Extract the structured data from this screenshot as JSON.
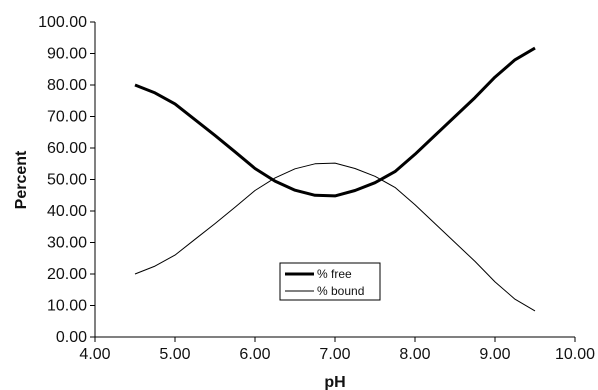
{
  "chart_data": {
    "type": "line",
    "xlabel": "pH",
    "ylabel": "Percent",
    "xlim": [
      4.0,
      10.0
    ],
    "ylim": [
      0.0,
      100.0
    ],
    "x_ticks": [
      "4.00",
      "5.00",
      "6.00",
      "7.00",
      "8.00",
      "9.00",
      "10.00"
    ],
    "y_ticks": [
      "0.00",
      "10.00",
      "20.00",
      "30.00",
      "40.00",
      "50.00",
      "60.00",
      "70.00",
      "80.00",
      "90.00",
      "100.00"
    ],
    "grid": false,
    "legend_position": "bottom-center",
    "series": [
      {
        "name": "% free",
        "color": "#000000",
        "style": "thick",
        "x": [
          4.5,
          4.75,
          5.0,
          5.25,
          5.5,
          5.75,
          6.0,
          6.25,
          6.5,
          6.75,
          7.0,
          7.25,
          7.5,
          7.75,
          8.0,
          8.25,
          8.5,
          8.75,
          9.0,
          9.25,
          9.5
        ],
        "y": [
          80.0,
          77.5,
          74.0,
          69.0,
          64.0,
          58.8,
          53.5,
          49.5,
          46.6,
          45.0,
          44.8,
          46.5,
          49.0,
          52.5,
          58.0,
          64.0,
          70.0,
          76.0,
          82.5,
          88.0,
          91.7
        ]
      },
      {
        "name": "% bound",
        "color": "#000000",
        "style": "thin",
        "x": [
          4.5,
          4.75,
          5.0,
          5.25,
          5.5,
          5.75,
          6.0,
          6.25,
          6.5,
          6.75,
          7.0,
          7.25,
          7.5,
          7.75,
          8.0,
          8.25,
          8.5,
          8.75,
          9.0,
          9.25,
          9.5
        ],
        "y": [
          20.0,
          22.5,
          26.0,
          31.0,
          36.0,
          41.2,
          46.5,
          50.5,
          53.4,
          55.0,
          55.2,
          53.5,
          51.0,
          47.5,
          42.0,
          36.0,
          30.0,
          24.0,
          17.5,
          12.0,
          8.3
        ]
      }
    ]
  }
}
